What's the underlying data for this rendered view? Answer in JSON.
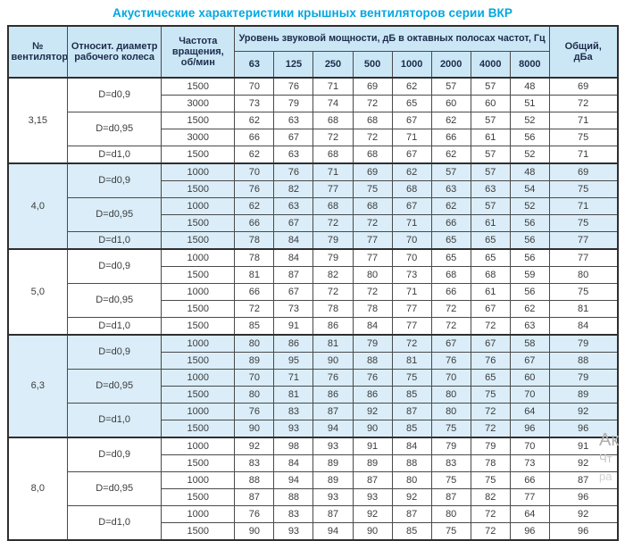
{
  "title": "Акустические характеристики крышных вентиляторов серии ВКР",
  "colors": {
    "title_accent": "#00a7e0",
    "header_bg": "#cbe7f6",
    "band_bg": "#daedf8",
    "header_text": "#1c2b4a",
    "cell_text": "#3c3c3c",
    "border": "#2f2f2f"
  },
  "watermark": {
    "line1": "Ак",
    "line2": "Чт",
    "line3": "ра"
  },
  "table": {
    "headers": {
      "fan_number": "№ вентилятора",
      "diameter": "Относит. диаметр рабочего колеса",
      "speed": "Частота вращения, об/мин",
      "spl_group": "Уровень звуковой мощности, дБ в октавных полосах частот, Гц",
      "frequencies": [
        "63",
        "125",
        "250",
        "500",
        "1000",
        "2000",
        "4000",
        "8000"
      ],
      "total": "Общий, дБа"
    },
    "groups": [
      {
        "fan": "3,15",
        "shaded": false,
        "diameters": [
          {
            "label": "D=d0,9",
            "rows": [
              {
                "rpm": "1500",
                "levels": [
                  70,
                  76,
                  71,
                  69,
                  62,
                  57,
                  57,
                  48
                ],
                "total": 69
              },
              {
                "rpm": "3000",
                "levels": [
                  73,
                  79,
                  74,
                  72,
                  65,
                  60,
                  60,
                  51
                ],
                "total": 72
              }
            ]
          },
          {
            "label": "D=d0,95",
            "rows": [
              {
                "rpm": "1500",
                "levels": [
                  62,
                  63,
                  68,
                  68,
                  67,
                  62,
                  57,
                  52
                ],
                "total": 71
              },
              {
                "rpm": "3000",
                "levels": [
                  66,
                  67,
                  72,
                  72,
                  71,
                  66,
                  61,
                  56
                ],
                "total": 75
              }
            ]
          },
          {
            "label": "D=d1,0",
            "rows": [
              {
                "rpm": "1500",
                "levels": [
                  62,
                  63,
                  68,
                  68,
                  67,
                  62,
                  57,
                  52
                ],
                "total": 71
              }
            ]
          }
        ]
      },
      {
        "fan": "4,0",
        "shaded": true,
        "diameters": [
          {
            "label": "D=d0,9",
            "rows": [
              {
                "rpm": "1000",
                "levels": [
                  70,
                  76,
                  71,
                  69,
                  62,
                  57,
                  57,
                  48
                ],
                "total": 69
              },
              {
                "rpm": "1500",
                "levels": [
                  76,
                  82,
                  77,
                  75,
                  68,
                  63,
                  63,
                  54
                ],
                "total": 75
              }
            ]
          },
          {
            "label": "D=d0,95",
            "rows": [
              {
                "rpm": "1000",
                "levels": [
                  62,
                  63,
                  68,
                  68,
                  67,
                  62,
                  57,
                  52
                ],
                "total": 71
              },
              {
                "rpm": "1500",
                "levels": [
                  66,
                  67,
                  72,
                  72,
                  71,
                  66,
                  61,
                  56
                ],
                "total": 75
              }
            ]
          },
          {
            "label": "D=d1,0",
            "rows": [
              {
                "rpm": "1500",
                "levels": [
                  78,
                  84,
                  79,
                  77,
                  70,
                  65,
                  65,
                  56
                ],
                "total": 77
              }
            ]
          }
        ]
      },
      {
        "fan": "5,0",
        "shaded": false,
        "diameters": [
          {
            "label": "D=d0,9",
            "rows": [
              {
                "rpm": "1000",
                "levels": [
                  78,
                  84,
                  79,
                  77,
                  70,
                  65,
                  65,
                  56
                ],
                "total": 77
              },
              {
                "rpm": "1500",
                "levels": [
                  81,
                  87,
                  82,
                  80,
                  73,
                  68,
                  68,
                  59
                ],
                "total": 80
              }
            ]
          },
          {
            "label": "D=d0,95",
            "rows": [
              {
                "rpm": "1000",
                "levels": [
                  66,
                  67,
                  72,
                  72,
                  71,
                  66,
                  61,
                  56
                ],
                "total": 75
              },
              {
                "rpm": "1500",
                "levels": [
                  72,
                  73,
                  78,
                  78,
                  77,
                  72,
                  67,
                  62
                ],
                "total": 81
              }
            ]
          },
          {
            "label": "D=d1,0",
            "rows": [
              {
                "rpm": "1500",
                "levels": [
                  85,
                  91,
                  86,
                  84,
                  77,
                  72,
                  72,
                  63
                ],
                "total": 84
              }
            ]
          }
        ]
      },
      {
        "fan": "6,3",
        "shaded": true,
        "diameters": [
          {
            "label": "D=d0,9",
            "rows": [
              {
                "rpm": "1000",
                "levels": [
                  80,
                  86,
                  81,
                  79,
                  72,
                  67,
                  67,
                  58
                ],
                "total": 79
              },
              {
                "rpm": "1500",
                "levels": [
                  89,
                  95,
                  90,
                  88,
                  81,
                  76,
                  76,
                  67
                ],
                "total": 88
              }
            ]
          },
          {
            "label": "D=d0,95",
            "rows": [
              {
                "rpm": "1000",
                "levels": [
                  70,
                  71,
                  76,
                  76,
                  75,
                  70,
                  65,
                  60
                ],
                "total": 79
              },
              {
                "rpm": "1500",
                "levels": [
                  80,
                  81,
                  86,
                  86,
                  85,
                  80,
                  75,
                  70
                ],
                "total": 89
              }
            ]
          },
          {
            "label": "D=d1,0",
            "rows": [
              {
                "rpm": "1000",
                "levels": [
                  76,
                  83,
                  87,
                  92,
                  87,
                  80,
                  72,
                  64
                ],
                "total": 92
              },
              {
                "rpm": "1500",
                "levels": [
                  90,
                  93,
                  94,
                  90,
                  85,
                  75,
                  72,
                  96
                ],
                "total": 96
              }
            ]
          }
        ]
      },
      {
        "fan": "8,0",
        "shaded": false,
        "diameters": [
          {
            "label": "D=d0,9",
            "rows": [
              {
                "rpm": "1000",
                "levels": [
                  92,
                  98,
                  93,
                  91,
                  84,
                  79,
                  79,
                  70
                ],
                "total": 91
              },
              {
                "rpm": "1500",
                "levels": [
                  83,
                  84,
                  89,
                  89,
                  88,
                  83,
                  78,
                  73
                ],
                "total": 92
              }
            ]
          },
          {
            "label": "D=d0,95",
            "rows": [
              {
                "rpm": "1000",
                "levels": [
                  88,
                  94,
                  89,
                  87,
                  80,
                  75,
                  75,
                  66
                ],
                "total": 87
              },
              {
                "rpm": "1500",
                "levels": [
                  87,
                  88,
                  93,
                  93,
                  92,
                  87,
                  82,
                  77
                ],
                "total": 96
              }
            ]
          },
          {
            "label": "D=d1,0",
            "rows": [
              {
                "rpm": "1000",
                "levels": [
                  76,
                  83,
                  87,
                  92,
                  87,
                  80,
                  72,
                  64
                ],
                "total": 92
              },
              {
                "rpm": "1500",
                "levels": [
                  90,
                  93,
                  94,
                  90,
                  85,
                  75,
                  72,
                  96
                ],
                "total": 96
              }
            ]
          }
        ]
      }
    ]
  }
}
